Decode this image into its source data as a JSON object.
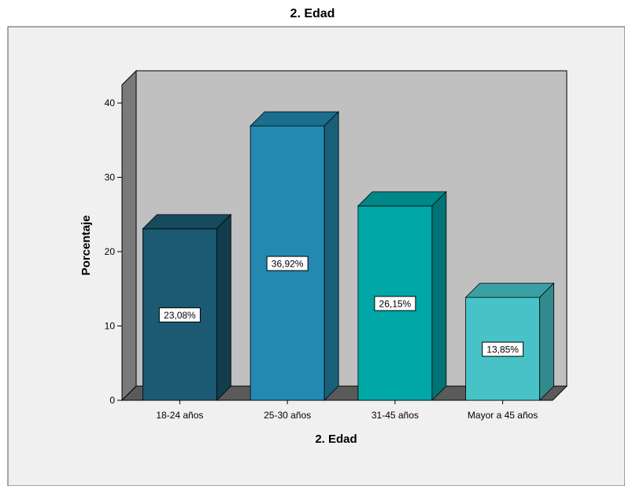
{
  "chart_data": {
    "type": "bar",
    "title": "2. Edad",
    "xlabel": "2. Edad",
    "ylabel": "Porcentaje",
    "categories": [
      "18-24 años",
      "25-30 años",
      "31-45 años",
      "Mayor a 45 años"
    ],
    "values": [
      23.08,
      36.92,
      26.15,
      13.85
    ],
    "data_labels": [
      "23,08%",
      "36,92%",
      "26,15%",
      "13,85%"
    ],
    "yticks": [
      "0",
      "10",
      "20",
      "30",
      "40"
    ],
    "ylim": [
      0,
      40
    ],
    "grid": false,
    "legend": "none",
    "style": "3d",
    "colors": {
      "bars": [
        "#1b5a72",
        "#2389b0",
        "#00a7a7",
        "#47c3c8"
      ],
      "bar_tops": [
        "#164a5d",
        "#1c6e8e",
        "#008787",
        "#3a9fa3"
      ],
      "bar_sides": [
        "#123d4d",
        "#195f7a",
        "#007474",
        "#328a8d"
      ],
      "plot_background": "#c0c0c0",
      "chart_background": "#f0f0f0"
    }
  }
}
